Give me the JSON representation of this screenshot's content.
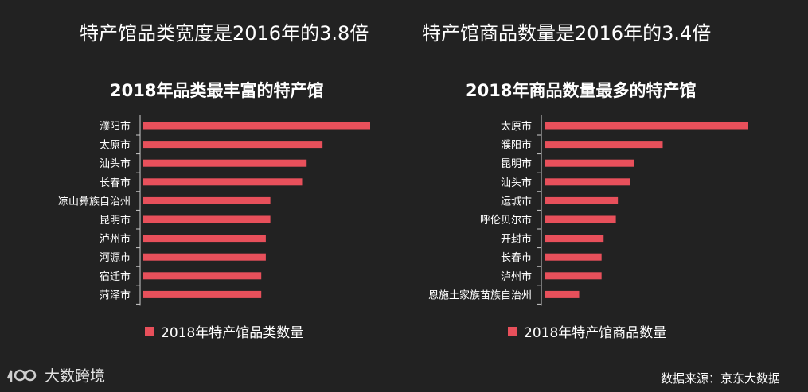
{
  "headline_left": "特产馆品类宽度是2016年的3.8倍",
  "headline_right": "特产馆商品数量是2016年的3.4倍",
  "bar_color": "#e8505b",
  "chart_data": [
    {
      "type": "bar",
      "orientation": "horizontal",
      "title": "2018年品类最丰富的特产馆",
      "categories": [
        "濮阳市",
        "太原市",
        "汕头市",
        "长春市",
        "凉山彝族自治州",
        "昆明市",
        "泸州市",
        "河源市",
        "宿迁市",
        "菏泽市"
      ],
      "series": [
        {
          "name": "2018年特产馆品类数量",
          "values": [
            100,
            79,
            72,
            70,
            56,
            56,
            54,
            54,
            52,
            52
          ]
        }
      ],
      "xlim": [
        0,
        100
      ],
      "legend": "bottom",
      "grid": false
    },
    {
      "type": "bar",
      "orientation": "horizontal",
      "title": "2018年商品数量最多的特产馆",
      "categories": [
        "太原市",
        "濮阳市",
        "昆明市",
        "汕头市",
        "运城市",
        "呼伦贝尔市",
        "开封市",
        "长春市",
        "泸州市",
        "恩施土家族苗族自治州"
      ],
      "series": [
        {
          "name": "2018年特产馆商品数量",
          "values": [
            100,
            58,
            44,
            42,
            36,
            35,
            29,
            28,
            28,
            17
          ]
        }
      ],
      "xlim": [
        0,
        100
      ],
      "legend": "bottom",
      "grid": false
    }
  ],
  "logo_text": "大数跨境",
  "source": "数据来源：京东大数据"
}
